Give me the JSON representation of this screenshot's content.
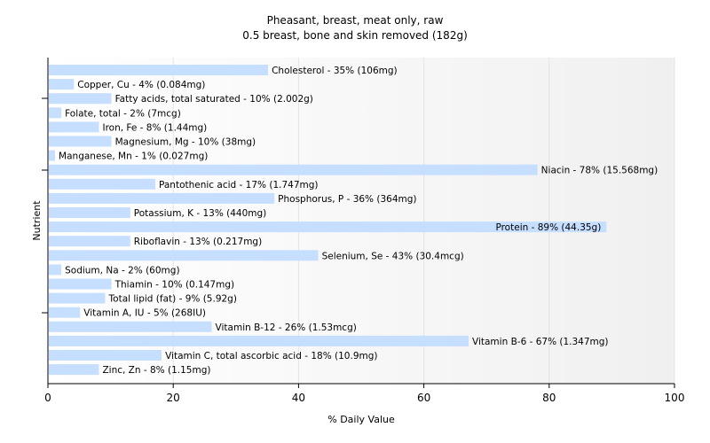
{
  "chart_data": {
    "type": "bar",
    "orientation": "horizontal",
    "title": "Pheasant, breast, meat only, raw",
    "subtitle": "0.5 breast, bone and skin removed (182g)",
    "xlabel": "% Daily Value",
    "ylabel": "Nutrient",
    "xlim": [
      0,
      100
    ],
    "xticks": [
      0,
      20,
      40,
      60,
      80,
      100
    ],
    "grid": true,
    "bar_color": "#c6deff",
    "bars": [
      {
        "name": "Cholesterol",
        "value": 35,
        "label": "Cholesterol - 35% (106mg)"
      },
      {
        "name": "Copper, Cu",
        "value": 4,
        "label": "Copper, Cu - 4% (0.084mg)"
      },
      {
        "name": "Fatty acids, total saturated",
        "value": 10,
        "label": "Fatty acids, total saturated - 10% (2.002g)"
      },
      {
        "name": "Folate, total",
        "value": 2,
        "label": "Folate, total - 2% (7mcg)"
      },
      {
        "name": "Iron, Fe",
        "value": 8,
        "label": "Iron, Fe - 8% (1.44mg)"
      },
      {
        "name": "Magnesium, Mg",
        "value": 10,
        "label": "Magnesium, Mg - 10% (38mg)"
      },
      {
        "name": "Manganese, Mn",
        "value": 1,
        "label": "Manganese, Mn - 1% (0.027mg)"
      },
      {
        "name": "Niacin",
        "value": 78,
        "label": "Niacin - 78% (15.568mg)"
      },
      {
        "name": "Pantothenic acid",
        "value": 17,
        "label": "Pantothenic acid - 17% (1.747mg)"
      },
      {
        "name": "Phosphorus, P",
        "value": 36,
        "label": "Phosphorus, P - 36% (364mg)"
      },
      {
        "name": "Potassium, K",
        "value": 13,
        "label": "Potassium, K - 13% (440mg)"
      },
      {
        "name": "Protein",
        "value": 89,
        "label": "Protein - 89% (44.35g)"
      },
      {
        "name": "Riboflavin",
        "value": 13,
        "label": "Riboflavin - 13% (0.217mg)"
      },
      {
        "name": "Selenium, Se",
        "value": 43,
        "label": "Selenium, Se - 43% (30.4mcg)"
      },
      {
        "name": "Sodium, Na",
        "value": 2,
        "label": "Sodium, Na - 2% (60mg)"
      },
      {
        "name": "Thiamin",
        "value": 10,
        "label": "Thiamin - 10% (0.147mg)"
      },
      {
        "name": "Total lipid (fat)",
        "value": 9,
        "label": "Total lipid (fat) - 9% (5.92g)"
      },
      {
        "name": "Vitamin A, IU",
        "value": 5,
        "label": "Vitamin A, IU - 5% (268IU)"
      },
      {
        "name": "Vitamin B-12",
        "value": 26,
        "label": "Vitamin B-12 - 26% (1.53mcg)"
      },
      {
        "name": "Vitamin B-6",
        "value": 67,
        "label": "Vitamin B-6 - 67% (1.347mg)"
      },
      {
        "name": "Vitamin C, total ascorbic acid",
        "value": 18,
        "label": "Vitamin C, total ascorbic acid - 18% (10.9mg)"
      },
      {
        "name": "Zinc, Zn",
        "value": 8,
        "label": "Zinc, Zn - 8% (1.15mg)"
      }
    ]
  }
}
